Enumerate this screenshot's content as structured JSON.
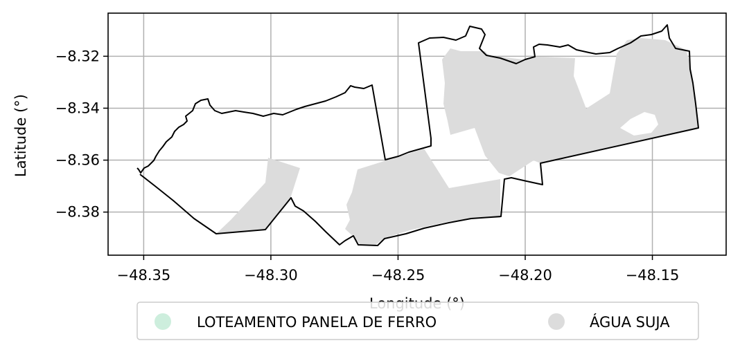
{
  "chart_data": {
    "type": "map",
    "xlabel": "Longitude (°)",
    "ylabel": "Latitude (°)",
    "xlim": [
      -48.364,
      -48.121
    ],
    "ylim": [
      -8.3966,
      -8.3034
    ],
    "xticks": [
      -48.35,
      -48.3,
      -48.25,
      -48.2,
      -48.15
    ],
    "xtick_labels": [
      "−48.35",
      "−48.30",
      "−48.25",
      "−48.20",
      "−48.15"
    ],
    "yticks": [
      -8.32,
      -8.34,
      -8.36,
      -8.38
    ],
    "ytick_labels": [
      "−8.32",
      "−8.34",
      "−8.36",
      "−8.38"
    ],
    "grid": true,
    "legend_position": "bottom-center",
    "legend": [
      {
        "label": "LOTEAMENTO PANELA DE FERRO",
        "color": "#cdeedd"
      },
      {
        "label": "ÁGUA SUJA",
        "color": "#dcdcdc"
      }
    ],
    "boundary_color": "#000000",
    "area_color": "#dcdcdc"
  }
}
